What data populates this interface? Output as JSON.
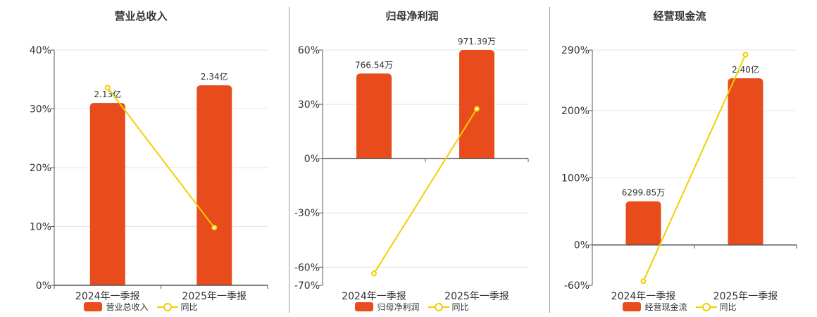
{
  "colors": {
    "bar": "#e84c1c",
    "line": "#f0d000",
    "grid": "#e6e6e6",
    "axis": "#555555",
    "text": "#333333"
  },
  "chart_data": [
    {
      "type": "bar",
      "title": "营业总收入",
      "categories": [
        "2024年一季报",
        "2025年一季报"
      ],
      "series": [
        {
          "name": "营业总收入",
          "type": "bar",
          "values": [
            31,
            34
          ],
          "labels": [
            "2.13亿",
            "2.34亿"
          ]
        },
        {
          "name": "同比",
          "type": "line",
          "values": [
            33.6,
            9.8
          ]
        }
      ],
      "ylim": [
        0,
        40
      ],
      "yticks": [
        0,
        10,
        20,
        30,
        40
      ],
      "ytick_labels": [
        "0%",
        "10%",
        "20%",
        "30%",
        "40%"
      ],
      "legend_position": "bottom",
      "grid": true
    },
    {
      "type": "bar",
      "title": "归母净利润",
      "categories": [
        "2024年一季报",
        "2025年一季报"
      ],
      "series": [
        {
          "name": "归母净利润",
          "type": "bar",
          "values": [
            47,
            60
          ],
          "labels": [
            "766.54万",
            "971.39万"
          ]
        },
        {
          "name": "同比",
          "type": "line",
          "values": [
            -63.5,
            27.5
          ]
        }
      ],
      "ylim": [
        -70,
        60
      ],
      "yticks": [
        -70,
        -60,
        -30,
        0,
        30,
        60
      ],
      "ytick_labels": [
        "-70%",
        "-60%",
        "-30%",
        "0%",
        "30%",
        "60%"
      ],
      "legend_position": "bottom",
      "grid": true
    },
    {
      "type": "bar",
      "title": "经营现金流",
      "categories": [
        "2024年一季报",
        "2025年一季报"
      ],
      "series": [
        {
          "name": "经营现金流",
          "type": "bar",
          "values": [
            65,
            248
          ],
          "labels": [
            "6299.85万",
            "2.40亿"
          ]
        },
        {
          "name": "同比",
          "type": "line",
          "values": [
            -54,
            283
          ]
        }
      ],
      "ylim": [
        -60,
        290
      ],
      "yticks": [
        -60,
        0,
        100,
        200,
        290
      ],
      "ytick_labels": [
        "-60%",
        "0%",
        "100%",
        "200%",
        "290%"
      ],
      "legend_position": "bottom",
      "grid": true
    }
  ]
}
